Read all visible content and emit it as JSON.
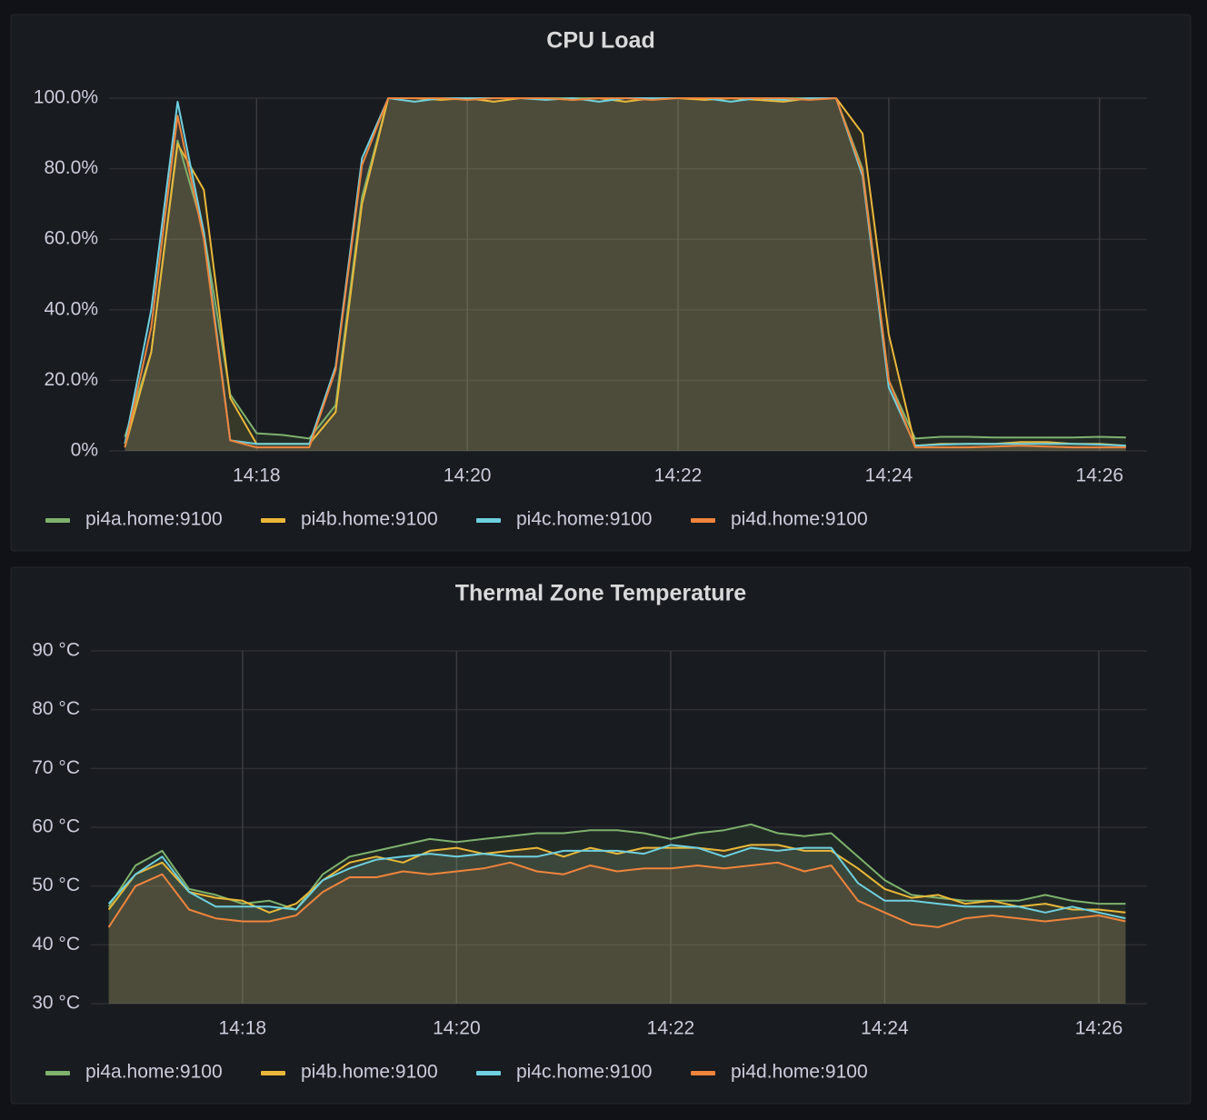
{
  "chart_data": [
    {
      "type": "line",
      "title": "CPU Load",
      "x": [
        "14:16:45",
        "14:17:00",
        "14:17:15",
        "14:17:30",
        "14:17:45",
        "14:18:00",
        "14:18:15",
        "14:18:30",
        "14:18:45",
        "14:19:00",
        "14:19:15",
        "14:19:30",
        "14:19:45",
        "14:20:00",
        "14:20:15",
        "14:20:30",
        "14:20:45",
        "14:21:00",
        "14:21:15",
        "14:21:30",
        "14:21:45",
        "14:22:00",
        "14:22:15",
        "14:22:30",
        "14:22:45",
        "14:23:00",
        "14:23:15",
        "14:23:30",
        "14:23:45",
        "14:24:00",
        "14:24:15",
        "14:24:30",
        "14:24:45",
        "14:25:00",
        "14:25:15",
        "14:25:30",
        "14:25:45",
        "14:26:00",
        "14:26:15"
      ],
      "xlim": [
        "14:16:36",
        "14:26:27"
      ],
      "xticks": [
        "14:18",
        "14:20",
        "14:22",
        "14:24",
        "14:26"
      ],
      "ylim": [
        0,
        100
      ],
      "yticks": [
        {
          "value": 0,
          "label": "0%"
        },
        {
          "value": 20,
          "label": "20.0%"
        },
        {
          "value": 40,
          "label": "40.0%"
        },
        {
          "value": 60,
          "label": "60.0%"
        },
        {
          "value": 80,
          "label": "80.0%"
        },
        {
          "value": 100,
          "label": "100.0%"
        }
      ],
      "grid": true,
      "series": [
        {
          "name": "pi4a.home:9100",
          "color": "#7eb26d",
          "values": [
            4,
            28,
            88,
            62,
            16,
            5,
            4.5,
            3.5,
            13,
            72,
            100,
            100,
            100,
            100,
            100,
            100,
            100,
            100,
            100,
            100,
            100,
            100,
            100,
            100,
            100,
            100,
            100,
            100,
            80,
            20,
            3.5,
            4,
            4,
            3.8,
            3.8,
            3.8,
            3.8,
            4,
            3.8
          ]
        },
        {
          "name": "pi4b.home:9100",
          "color": "#eab839",
          "values": [
            1,
            28,
            87,
            74,
            15,
            2,
            2,
            2,
            11,
            70,
            100,
            100,
            99.5,
            100,
            99,
            100,
            100,
            99.5,
            100,
            99,
            100,
            100,
            99.5,
            100,
            99.5,
            99,
            100,
            100,
            90,
            33,
            1.5,
            2,
            2,
            2,
            2.5,
            2.5,
            2,
            2,
            1.5
          ]
        },
        {
          "name": "pi4c.home:9100",
          "color": "#6ed0e0",
          "values": [
            2,
            40,
            99,
            62,
            3,
            2,
            2,
            2,
            24,
            83,
            100,
            99,
            100,
            100,
            100,
            100,
            99.5,
            100,
            99,
            100,
            100,
            100,
            100,
            99,
            100,
            99.5,
            100,
            100,
            78,
            18,
            1.5,
            1.8,
            2,
            2,
            2,
            2,
            2,
            1.8,
            1.5
          ]
        },
        {
          "name": "pi4d.home:9100",
          "color": "#ef843c",
          "values": [
            1,
            35,
            95,
            60,
            3,
            1,
            1,
            1,
            23,
            81,
            100,
            100,
            100,
            99.5,
            100,
            100,
            100,
            99.5,
            100,
            100,
            99.5,
            100,
            100,
            100,
            100,
            100,
            99.5,
            100,
            79,
            20,
            1,
            1,
            1,
            1.2,
            1.5,
            1.2,
            1,
            1,
            1
          ]
        }
      ]
    },
    {
      "type": "line",
      "title": "Thermal Zone Temperature",
      "x": [
        "14:16:45",
        "14:17:00",
        "14:17:15",
        "14:17:30",
        "14:17:45",
        "14:18:00",
        "14:18:15",
        "14:18:30",
        "14:18:45",
        "14:19:00",
        "14:19:15",
        "14:19:30",
        "14:19:45",
        "14:20:00",
        "14:20:15",
        "14:20:30",
        "14:20:45",
        "14:21:00",
        "14:21:15",
        "14:21:30",
        "14:21:45",
        "14:22:00",
        "14:22:15",
        "14:22:30",
        "14:22:45",
        "14:23:00",
        "14:23:15",
        "14:23:30",
        "14:23:45",
        "14:24:00",
        "14:24:15",
        "14:24:30",
        "14:24:45",
        "14:25:00",
        "14:25:15",
        "14:25:30",
        "14:25:45",
        "14:26:00",
        "14:26:15"
      ],
      "xlim": [
        "14:16:35",
        "14:26:27"
      ],
      "xticks": [
        "14:18",
        "14:20",
        "14:22",
        "14:24",
        "14:26"
      ],
      "ylim": [
        30,
        90
      ],
      "yticks": [
        {
          "value": 30,
          "label": "30 °C"
        },
        {
          "value": 40,
          "label": "40 °C"
        },
        {
          "value": 50,
          "label": "50 °C"
        },
        {
          "value": 60,
          "label": "60 °C"
        },
        {
          "value": 70,
          "label": "70 °C"
        },
        {
          "value": 80,
          "label": "80 °C"
        },
        {
          "value": 90,
          "label": "90 °C"
        }
      ],
      "grid": true,
      "series": [
        {
          "name": "pi4a.home:9100",
          "color": "#7eb26d",
          "values": [
            46.5,
            53.5,
            56,
            49.5,
            48.5,
            47,
            47.5,
            46,
            52,
            55,
            56,
            57,
            58,
            57.5,
            58,
            58.5,
            59,
            59,
            59.5,
            59.5,
            59,
            58,
            59,
            59.5,
            60.5,
            59,
            58.5,
            59,
            55,
            51,
            48.5,
            48,
            47.5,
            47.5,
            47.5,
            48.5,
            47.5,
            47,
            47
          ]
        },
        {
          "name": "pi4b.home:9100",
          "color": "#eab839",
          "values": [
            46,
            52,
            54,
            49,
            48,
            47.5,
            45.5,
            47,
            51,
            54,
            55,
            54,
            56,
            56.5,
            55.5,
            56,
            56.5,
            55,
            56.5,
            55.5,
            56.5,
            56.5,
            56.5,
            56,
            57,
            57,
            56,
            56,
            53,
            49.5,
            48,
            48.5,
            47,
            47.5,
            46.5,
            47,
            46,
            46,
            45.5
          ]
        },
        {
          "name": "pi4c.home:9100",
          "color": "#6ed0e0",
          "values": [
            47,
            52,
            55,
            49,
            46.5,
            46.5,
            46.5,
            46,
            51,
            53,
            54.5,
            55,
            55.5,
            55,
            55.5,
            55,
            55,
            56,
            56,
            56,
            55.5,
            57,
            56.5,
            55,
            56.5,
            56,
            56.5,
            56.5,
            50.5,
            47.5,
            47.5,
            47,
            46.5,
            46.5,
            46.5,
            45.5,
            46.5,
            45.5,
            44.5
          ]
        },
        {
          "name": "pi4d.home:9100",
          "color": "#ef843c",
          "values": [
            43,
            50,
            52,
            46,
            44.5,
            44,
            44,
            45,
            49,
            51.5,
            51.5,
            52.5,
            52,
            52.5,
            53,
            54,
            52.5,
            52,
            53.5,
            52.5,
            53,
            53,
            53.5,
            53,
            53.5,
            54,
            52.5,
            53.5,
            47.5,
            45.5,
            43.5,
            43,
            44.5,
            45,
            44.5,
            44,
            44.5,
            45,
            44
          ]
        }
      ]
    }
  ]
}
